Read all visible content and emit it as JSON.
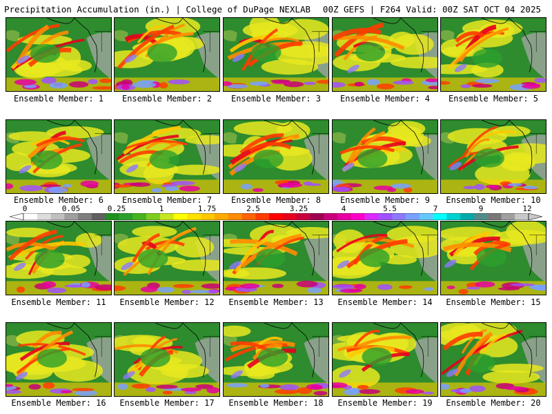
{
  "header": {
    "left": "Precipitation Accumulation (in.) | College of DuPage NEXLAB",
    "right": "00Z GEFS | F264 Valid: 00Z SAT OCT 04 2025"
  },
  "members": [
    "Ensemble Member: 1",
    "Ensemble Member: 2",
    "Ensemble Member: 3",
    "Ensemble Member: 4",
    "Ensemble Member: 5",
    "Ensemble Member: 6",
    "Ensemble Member: 7",
    "Ensemble Member: 8",
    "Ensemble Member: 9",
    "Ensemble Member: 10",
    "Ensemble Member: 11",
    "Ensemble Member: 12",
    "Ensemble Member: 13",
    "Ensemble Member: 14",
    "Ensemble Member: 15",
    "Ensemble Member: 16",
    "Ensemble Member: 17",
    "Ensemble Member: 18",
    "Ensemble Member: 19",
    "Ensemble Member: 20"
  ],
  "colorbar": {
    "ticks": [
      "0",
      "0.05",
      "0.25",
      "1",
      "1.75",
      "2.5",
      "3.25",
      "4",
      "5.5",
      "7",
      "9",
      "12"
    ],
    "colors": [
      "#ffffff",
      "#dddddd",
      "#c0c0c0",
      "#9f9f9f",
      "#7f7f7f",
      "#606060",
      "#1f8f1f",
      "#2ca02c",
      "#46b41e",
      "#7fcd1e",
      "#c8e61e",
      "#ffff00",
      "#ffe100",
      "#ffc800",
      "#ffaa00",
      "#ff8c00",
      "#ff6400",
      "#ff3c00",
      "#ff0000",
      "#e6001e",
      "#c8003c",
      "#a00050",
      "#c80078",
      "#e600a0",
      "#ff00c8",
      "#dc28ff",
      "#a050ff",
      "#8c78ff",
      "#78a0ff",
      "#64c8ff",
      "#00ffff",
      "#00d2d2",
      "#00aaaa",
      "#508c8c",
      "#787878",
      "#a0a0a0",
      "#c8c8c8"
    ]
  }
}
